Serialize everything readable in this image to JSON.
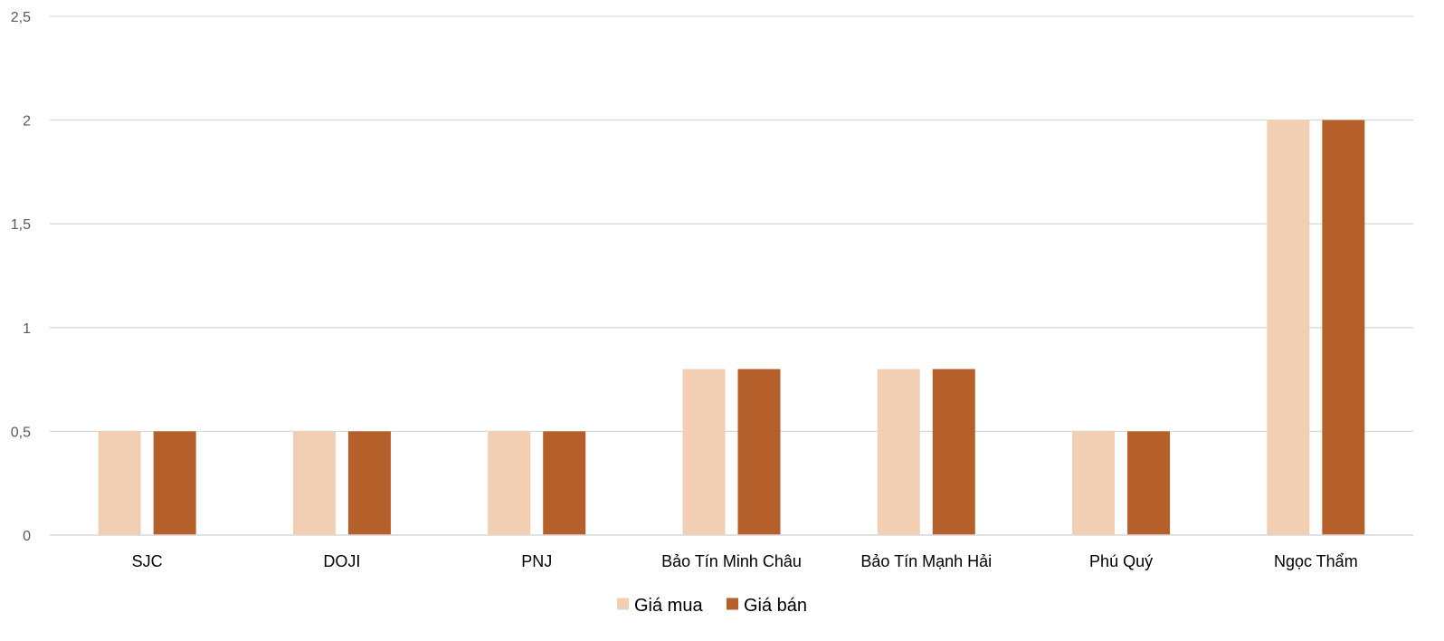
{
  "chart_data": {
    "type": "bar",
    "categories": [
      "SJC",
      "DOJI",
      "PNJ",
      "Bảo Tín Minh Châu",
      "Bảo Tín Mạnh Hải",
      "Phú Quý",
      "Ngọc Thẩm"
    ],
    "series": [
      {
        "name": "Giá mua",
        "values": [
          0.5,
          0.5,
          0.5,
          0.8,
          0.8,
          0.5,
          2
        ],
        "color": "#f2cfb3"
      },
      {
        "name": "Giá bán",
        "values": [
          0.5,
          0.5,
          0.5,
          0.8,
          0.8,
          0.5,
          2
        ],
        "color": "#b5602a"
      }
    ],
    "y_ticks": [
      "0",
      "0,5",
      "1",
      "1,5",
      "2",
      "2,5"
    ],
    "ylim": [
      0,
      2.5
    ],
    "grid": true,
    "legend_position": "bottom",
    "title": "",
    "xlabel": "",
    "ylabel": ""
  }
}
